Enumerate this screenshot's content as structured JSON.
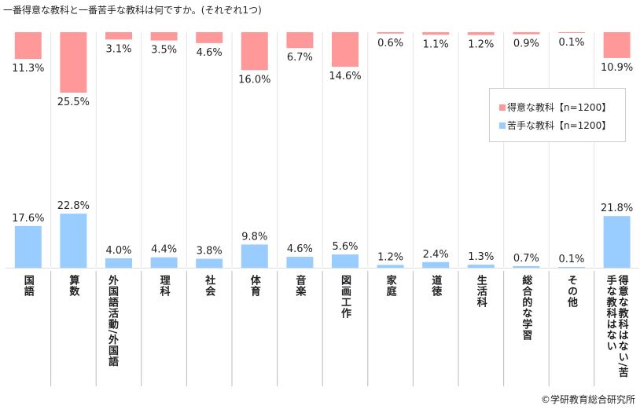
{
  "title": "一番得意な教科と一番苦手な教科は何ですか。(それぞれ1つ)",
  "credit": "©学研教育総合研究所",
  "colors": {
    "good": "#ff9999",
    "bad": "#99ccff"
  },
  "chart_data": {
    "type": "bar",
    "title": "一番得意な教科と一番苦手な教科は何ですか。(それぞれ1つ)",
    "categories": [
      "国語",
      "算数",
      "外国語活動／外国語",
      "理科",
      "社会",
      "体育",
      "音楽",
      "図画工作",
      "家庭",
      "道徳",
      "生活科",
      "総合的な学習",
      "その他",
      "得意な教科はない／苦手な教科はない"
    ],
    "series": [
      {
        "name": "得意な教科【n=1200】",
        "values": [
          11.3,
          25.5,
          3.1,
          3.5,
          4.6,
          16.0,
          6.7,
          14.6,
          0.6,
          1.1,
          1.2,
          0.9,
          0.1,
          10.9
        ]
      },
      {
        "name": "苦手な教科【n=1200】",
        "values": [
          17.6,
          22.8,
          4.0,
          4.4,
          3.8,
          9.8,
          4.6,
          5.6,
          1.2,
          2.4,
          1.3,
          0.7,
          0.1,
          21.8
        ]
      }
    ],
    "unit": "%",
    "legend": "right"
  }
}
